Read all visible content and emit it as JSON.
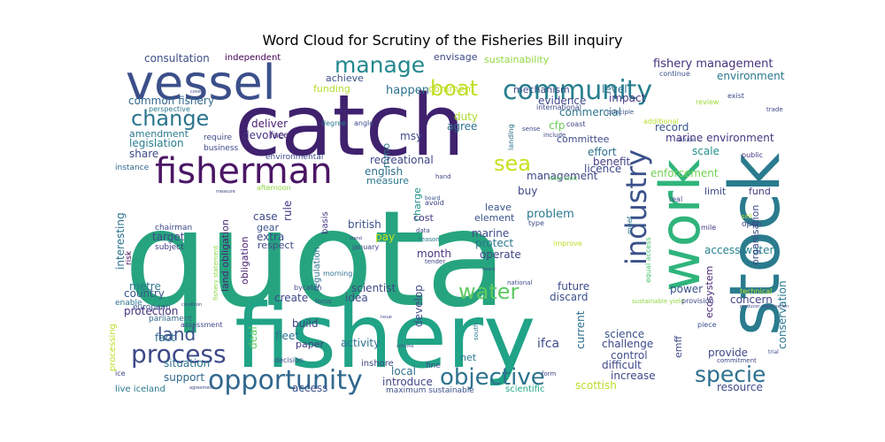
{
  "chart_data": {
    "type": "wordcloud",
    "title": "Word Cloud for Scrutiny of the Fisheries Bill inquiry",
    "words": [
      {
        "text": "quota",
        "color": "#26a47f"
      },
      {
        "text": "fishery",
        "color": "#20a386"
      },
      {
        "text": "catch",
        "color": "#3f216e"
      },
      {
        "text": "stock",
        "color": "#2a7b8e"
      },
      {
        "text": "work",
        "color": "#2fb47c"
      },
      {
        "text": "vessel",
        "color": "#3b4f8a"
      },
      {
        "text": "fisherman",
        "color": "#4b1665"
      },
      {
        "text": "community",
        "color": "#277f8e"
      },
      {
        "text": "industry",
        "color": "#3b518b"
      },
      {
        "text": "opportunity",
        "color": "#31688e"
      },
      {
        "text": "process",
        "color": "#3e4989"
      },
      {
        "text": "specie",
        "color": "#2d708e"
      },
      {
        "text": "objective",
        "color": "#2c738e"
      },
      {
        "text": "change",
        "color": "#2b758e"
      },
      {
        "text": "manage",
        "color": "#23888e"
      },
      {
        "text": "water",
        "color": "#5ec962"
      },
      {
        "text": "sea",
        "color": "#c8e020"
      },
      {
        "text": "boat",
        "color": "#c0df25"
      },
      {
        "text": "land",
        "color": "#3b528b"
      },
      {
        "text": "fishery management",
        "color": "#46327e"
      },
      {
        "text": "environment",
        "color": "#2a788e"
      },
      {
        "text": "consultation",
        "color": "#3c4f8a"
      },
      {
        "text": "independent",
        "color": "#440154"
      },
      {
        "text": "envisage",
        "color": "#3e4a89"
      },
      {
        "text": "sustainability",
        "color": "#90d743"
      },
      {
        "text": "achieve",
        "color": "#3b528b"
      },
      {
        "text": "funding",
        "color": "#b5de2b"
      },
      {
        "text": "comment",
        "color": "#bddf26"
      },
      {
        "text": "happen",
        "color": "#2c728e"
      },
      {
        "text": "mechanism",
        "color": "#3e4c8a"
      },
      {
        "text": "level",
        "color": "#2c728e"
      },
      {
        "text": "impact",
        "color": "#443983"
      },
      {
        "text": "evidence",
        "color": "#3f4788"
      },
      {
        "text": "commercial",
        "color": "#2c728e"
      },
      {
        "text": "common fishery",
        "color": "#31688e"
      },
      {
        "text": "devolve",
        "color": "#46337f"
      },
      {
        "text": "deliver",
        "color": "#481d6f"
      },
      {
        "text": "face",
        "color": "#482878"
      },
      {
        "text": "amendment",
        "color": "#2a788e"
      },
      {
        "text": "legislation",
        "color": "#277f8e"
      },
      {
        "text": "share",
        "color": "#3e4a89"
      },
      {
        "text": "duty",
        "color": "#addc30"
      },
      {
        "text": "agree",
        "color": "#2c728e"
      },
      {
        "text": "msy",
        "color": "#3e4989"
      },
      {
        "text": "mmo",
        "color": "#2a788e"
      },
      {
        "text": "cfp",
        "color": "#6ccd5a"
      },
      {
        "text": "effort",
        "color": "#2d708e"
      },
      {
        "text": "benefit",
        "color": "#433e85"
      },
      {
        "text": "licence",
        "color": "#3e4a89"
      },
      {
        "text": "committee",
        "color": "#3f4889"
      },
      {
        "text": "record",
        "color": "#39568c"
      },
      {
        "text": "marine environment",
        "color": "#453882"
      },
      {
        "text": "scale",
        "color": "#21918c"
      },
      {
        "text": "recreational",
        "color": "#3f4889"
      },
      {
        "text": "english",
        "color": "#2d708e"
      },
      {
        "text": "measure",
        "color": "#2a788e"
      },
      {
        "text": "management",
        "color": "#3f4788"
      },
      {
        "text": "enforcement",
        "color": "#73d056"
      },
      {
        "text": "buy",
        "color": "#404688"
      },
      {
        "text": "leave",
        "color": "#3b528b"
      },
      {
        "text": "element",
        "color": "#3b528b"
      },
      {
        "text": "limit",
        "color": "#3e4c8a"
      },
      {
        "text": "fund",
        "color": "#433e85"
      },
      {
        "text": "charge",
        "color": "#21918c"
      },
      {
        "text": "rule",
        "color": "#443a83"
      },
      {
        "text": "case",
        "color": "#3e4989"
      },
      {
        "text": "gear",
        "color": "#3b528b"
      },
      {
        "text": "cost",
        "color": "#443983"
      },
      {
        "text": "problem",
        "color": "#2a788e"
      },
      {
        "text": "british",
        "color": "#3b518b"
      },
      {
        "text": "regulation",
        "color": "#2c728e"
      },
      {
        "text": "basis",
        "color": "#46337f"
      },
      {
        "text": "target",
        "color": "#3e4a89"
      },
      {
        "text": "extra",
        "color": "#3d4d8a"
      },
      {
        "text": "pay",
        "color": "#c2df23"
      },
      {
        "text": "marine",
        "color": "#3e4a89"
      },
      {
        "text": "protect",
        "color": "#2a788e"
      },
      {
        "text": "operate",
        "color": "#404588"
      },
      {
        "text": "interesting",
        "color": "#2c728e"
      },
      {
        "text": "obligation",
        "color": "#481d6f"
      },
      {
        "text": "land obligation",
        "color": "#482475"
      },
      {
        "text": "month",
        "color": "#46337f"
      },
      {
        "text": "respect",
        "color": "#3e4989"
      },
      {
        "text": "access water",
        "color": "#26828e"
      },
      {
        "text": "organisation",
        "color": "#3e4989"
      },
      {
        "text": "metre",
        "color": "#2a788e"
      },
      {
        "text": "country",
        "color": "#38598c"
      },
      {
        "text": "scientist",
        "color": "#3f4788"
      },
      {
        "text": "future",
        "color": "#3e4989"
      },
      {
        "text": "discard",
        "color": "#3b528b"
      },
      {
        "text": "concern",
        "color": "#414487"
      },
      {
        "text": "power",
        "color": "#3b518b"
      },
      {
        "text": "protection",
        "color": "#46307e"
      },
      {
        "text": "create",
        "color": "#3f4788"
      },
      {
        "text": "idea",
        "color": "#3e4a89"
      },
      {
        "text": "develop",
        "color": "#3e4989"
      },
      {
        "text": "build",
        "color": "#414487"
      },
      {
        "text": "fleet",
        "color": "#2c738e"
      },
      {
        "text": "paper",
        "color": "#443983"
      },
      {
        "text": "activity",
        "color": "#2d708e"
      },
      {
        "text": "ifca",
        "color": "#3e4c8a"
      },
      {
        "text": "current",
        "color": "#2d708e"
      },
      {
        "text": "challenge",
        "color": "#3e4989"
      },
      {
        "text": "science",
        "color": "#3b528b"
      },
      {
        "text": "conservation",
        "color": "#2a788e"
      },
      {
        "text": "fact",
        "color": "#2e6e8e"
      },
      {
        "text": "deal",
        "color": "#5ec962"
      },
      {
        "text": "emff",
        "color": "#3e4989"
      },
      {
        "text": "ecosystem",
        "color": "#482475"
      },
      {
        "text": "provide",
        "color": "#3e4989"
      },
      {
        "text": "control",
        "color": "#3e4c8a"
      },
      {
        "text": "difficult",
        "color": "#3e4989"
      },
      {
        "text": "situation",
        "color": "#2c728e"
      },
      {
        "text": "local",
        "color": "#2d708e"
      },
      {
        "text": "introduce",
        "color": "#404688"
      },
      {
        "text": "net",
        "color": "#2a788e"
      },
      {
        "text": "increase",
        "color": "#3e4989"
      },
      {
        "text": "support",
        "color": "#31688e"
      },
      {
        "text": "access",
        "color": "#3b518b"
      },
      {
        "text": "scientific",
        "color": "#22a785"
      },
      {
        "text": "scottish",
        "color": "#b8de29"
      },
      {
        "text": "resource",
        "color": "#3e4989"
      },
      {
        "text": "live iceland",
        "color": "#2a788e"
      },
      {
        "text": "inshore",
        "color": "#3e4989"
      },
      {
        "text": "maximum sustainable",
        "color": "#3b528b"
      },
      {
        "text": "fine",
        "color": "#3e4c8a"
      },
      {
        "text": "processing",
        "color": "#bddf26"
      },
      {
        "text": "parliament",
        "color": "#31688e"
      },
      {
        "text": "european",
        "color": "#3b518b"
      },
      {
        "text": "enable",
        "color": "#2d708e"
      },
      {
        "text": "risk",
        "color": "#440154"
      },
      {
        "text": "chairman",
        "color": "#3e4989"
      },
      {
        "text": "subject",
        "color": "#443983"
      },
      {
        "text": "instance",
        "color": "#31688e"
      },
      {
        "text": "business",
        "color": "#3e4989"
      },
      {
        "text": "require",
        "color": "#3e4989"
      },
      {
        "text": "perspective",
        "color": "#2a788e"
      },
      {
        "text": "environmental",
        "color": "#3e4989"
      },
      {
        "text": "afternoon",
        "color": "#8fd744"
      },
      {
        "text": "degree",
        "color": "#2a788e"
      },
      {
        "text": "angle",
        "color": "#3e4989"
      },
      {
        "text": "landing",
        "color": "#2d708e"
      },
      {
        "text": "coast",
        "color": "#404688"
      },
      {
        "text": "international",
        "color": "#3e4989"
      },
      {
        "text": "principle",
        "color": "#3b528b"
      },
      {
        "text": "additional",
        "color": "#b5de2b"
      },
      {
        "text": "review",
        "color": "#9fda3a"
      },
      {
        "text": "exist",
        "color": "#3e4989"
      },
      {
        "text": "continue",
        "color": "#3b528b"
      },
      {
        "text": "reduce",
        "color": "#3e4989"
      },
      {
        "text": "trade",
        "color": "#3e4989"
      },
      {
        "text": "public",
        "color": "#443983"
      },
      {
        "text": "open",
        "color": "#3e4989"
      },
      {
        "text": "sell",
        "color": "#addc30"
      },
      {
        "text": "mile",
        "color": "#443983"
      },
      {
        "text": "mile limit",
        "color": "#5ec962"
      },
      {
        "text": "real",
        "color": "#3e4989"
      },
      {
        "text": "equal access",
        "color": "#48c16e"
      },
      {
        "text": "meet",
        "color": "#2a788e"
      },
      {
        "text": "type",
        "color": "#3e4989"
      },
      {
        "text": "improve",
        "color": "#bddf26"
      },
      {
        "text": "avoid",
        "color": "#3e4989"
      },
      {
        "text": "board",
        "color": "#3b528b"
      },
      {
        "text": "data",
        "color": "#3e4989"
      },
      {
        "text": "reason",
        "color": "#2a788e"
      },
      {
        "text": "tender",
        "color": "#3e4989"
      },
      {
        "text": "january",
        "color": "#3e4989"
      },
      {
        "text": "morning",
        "color": "#2d708e"
      },
      {
        "text": "hand",
        "color": "#3e4989"
      },
      {
        "text": "national",
        "color": "#3e4989"
      },
      {
        "text": "bycatch",
        "color": "#3e4989"
      },
      {
        "text": "focus",
        "color": "#3b528b"
      },
      {
        "text": "condition",
        "color": "#3e4989"
      },
      {
        "text": "assessment",
        "color": "#3e4989"
      },
      {
        "text": "decision",
        "color": "#3e4989"
      },
      {
        "text": "south",
        "color": "#2a788e"
      },
      {
        "text": "sense",
        "color": "#3e4989"
      },
      {
        "text": "include",
        "color": "#3e4989"
      },
      {
        "text": "sustainable yield",
        "color": "#8fd744"
      },
      {
        "text": "provision",
        "color": "#3e4989"
      },
      {
        "text": "piece",
        "color": "#3b528b"
      },
      {
        "text": "technical",
        "color": "#b5de2b"
      },
      {
        "text": "commitment",
        "color": "#3e4989"
      },
      {
        "text": "producer organisation",
        "color": "#3e4989"
      },
      {
        "text": "form",
        "color": "#3e4989"
      },
      {
        "text": "fishery statement",
        "color": "#8fd744"
      },
      {
        "text": "stand",
        "color": "#3e4989"
      },
      {
        "text": "measure",
        "color": "#3e4989"
      },
      {
        "text": "ice",
        "color": "#3e4989"
      },
      {
        "text": "agreement",
        "color": "#3e4989"
      },
      {
        "text": "trial",
        "color": "#3e4989"
      },
      {
        "text": "heard",
        "color": "#3e4989"
      },
      {
        "text": "issue",
        "color": "#3e4989"
      },
      {
        "text": "cover",
        "color": "#3e4989"
      },
      {
        "text": "scheme",
        "color": "#3e4989"
      }
    ]
  }
}
